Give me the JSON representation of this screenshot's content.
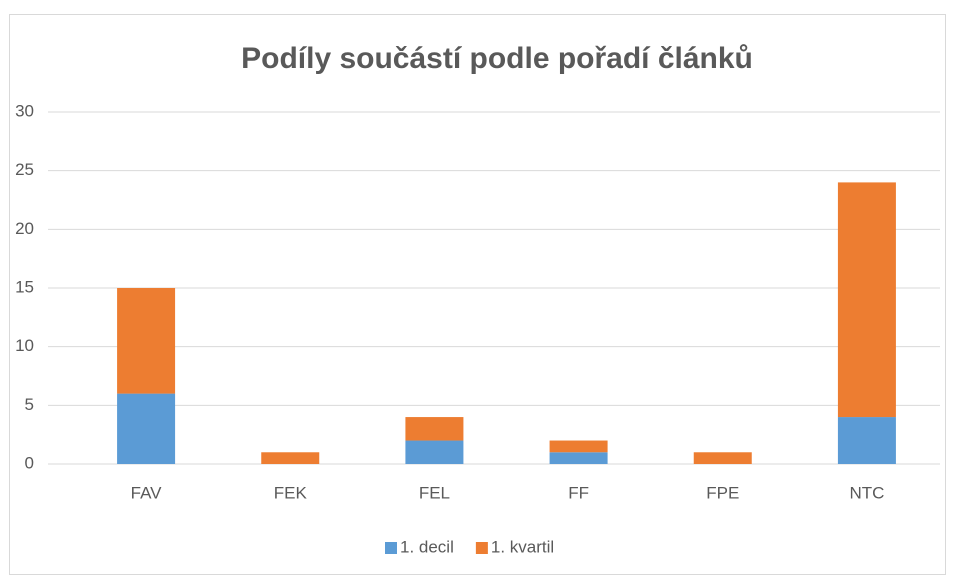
{
  "chart_data": {
    "type": "stacked_bar",
    "title": "Podíly součástí podle pořadí článků",
    "categories": [
      "FAV",
      "FEK",
      "FEL",
      "FF",
      "FPE",
      "NTC"
    ],
    "series": [
      {
        "name": "1. decil",
        "color": "#5b9bd5",
        "values": [
          6,
          0,
          2,
          1,
          0,
          4
        ]
      },
      {
        "name": "1. kvartil",
        "color": "#ed7d31",
        "values": [
          9,
          1,
          2,
          1,
          1,
          20
        ]
      }
    ],
    "ylim": [
      0,
      30
    ],
    "yticks": [
      0,
      5,
      10,
      15,
      20,
      25,
      30
    ],
    "grid": true,
    "legend": "bottom"
  }
}
